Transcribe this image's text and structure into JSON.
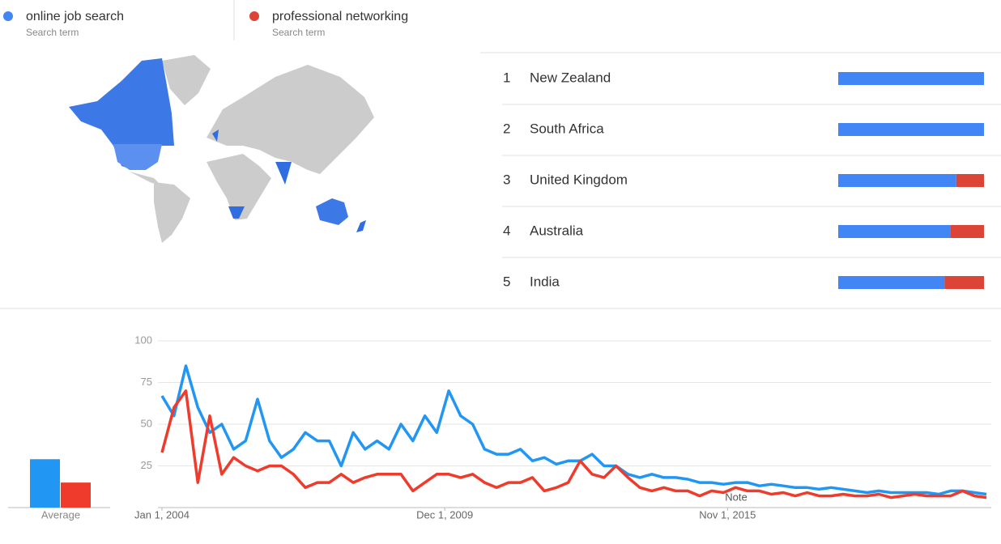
{
  "legend": [
    {
      "term": "online job search",
      "sublabel": "Search term",
      "color": "#4285f4"
    },
    {
      "term": "professional networking",
      "sublabel": "Search term",
      "color": "#db4437"
    }
  ],
  "regions": {
    "items": [
      {
        "rank": 1,
        "name": "New Zealand",
        "values": [
          100,
          0
        ]
      },
      {
        "rank": 2,
        "name": "South Africa",
        "values": [
          100,
          0
        ]
      },
      {
        "rank": 3,
        "name": "United Kingdom",
        "values": [
          81,
          19
        ]
      },
      {
        "rank": 4,
        "name": "Australia",
        "values": [
          77,
          23
        ]
      },
      {
        "rank": 5,
        "name": "India",
        "values": [
          73,
          27
        ]
      }
    ]
  },
  "chart_data": {
    "type": "line",
    "x": [
      0,
      3,
      6,
      9,
      12,
      15,
      18,
      21,
      24,
      27,
      30,
      33,
      36,
      39,
      42,
      45,
      48,
      51,
      54,
      57,
      60,
      63,
      66,
      69,
      72,
      75,
      78,
      81,
      84,
      87,
      90,
      93,
      96,
      99,
      102,
      105,
      108,
      111,
      114,
      117,
      120,
      123,
      126,
      129,
      132,
      135,
      138,
      141,
      144,
      147,
      150,
      153,
      156,
      159,
      162,
      165,
      168,
      171,
      174,
      177,
      180,
      183,
      186,
      189,
      192,
      195,
      198,
      201,
      204,
      207
    ],
    "xlim": [
      0,
      207
    ],
    "xticks": [
      {
        "value": 0,
        "label": "Jan 1, 2004"
      },
      {
        "value": 71,
        "label": "Dec 1, 2009"
      },
      {
        "value": 142,
        "label": "Nov 1, 2015"
      }
    ],
    "ylim": [
      0,
      100
    ],
    "yticks": [
      25,
      50,
      75,
      100
    ],
    "grid": true,
    "annotation": "Note",
    "series": [
      {
        "name": "online job search",
        "color": "#2196f3",
        "values": [
          67,
          55,
          85,
          60,
          45,
          50,
          35,
          40,
          65,
          40,
          30,
          35,
          45,
          40,
          40,
          25,
          45,
          35,
          40,
          35,
          50,
          40,
          55,
          45,
          70,
          55,
          50,
          35,
          32,
          32,
          35,
          28,
          30,
          26,
          28,
          28,
          32,
          25,
          25,
          20,
          18,
          20,
          18,
          18,
          17,
          15,
          15,
          14,
          15,
          15,
          13,
          14,
          13,
          12,
          12,
          11,
          12,
          11,
          10,
          9,
          10,
          9,
          9,
          9,
          9,
          8,
          10,
          10,
          9,
          8
        ]
      },
      {
        "name": "professional networking",
        "color": "#ef3b2c",
        "values": [
          33,
          60,
          70,
          15,
          55,
          20,
          30,
          25,
          22,
          25,
          25,
          20,
          12,
          15,
          15,
          20,
          15,
          18,
          20,
          20,
          20,
          10,
          15,
          20,
          20,
          18,
          20,
          15,
          12,
          15,
          15,
          18,
          10,
          12,
          15,
          28,
          20,
          18,
          25,
          18,
          12,
          10,
          12,
          10,
          10,
          7,
          10,
          9,
          12,
          10,
          10,
          8,
          9,
          7,
          9,
          7,
          7,
          8,
          7,
          7,
          8,
          6,
          7,
          8,
          7,
          7,
          7,
          10,
          7,
          6
        ]
      }
    ],
    "averages": {
      "label": "Average",
      "values": [
        29,
        15
      ]
    }
  }
}
